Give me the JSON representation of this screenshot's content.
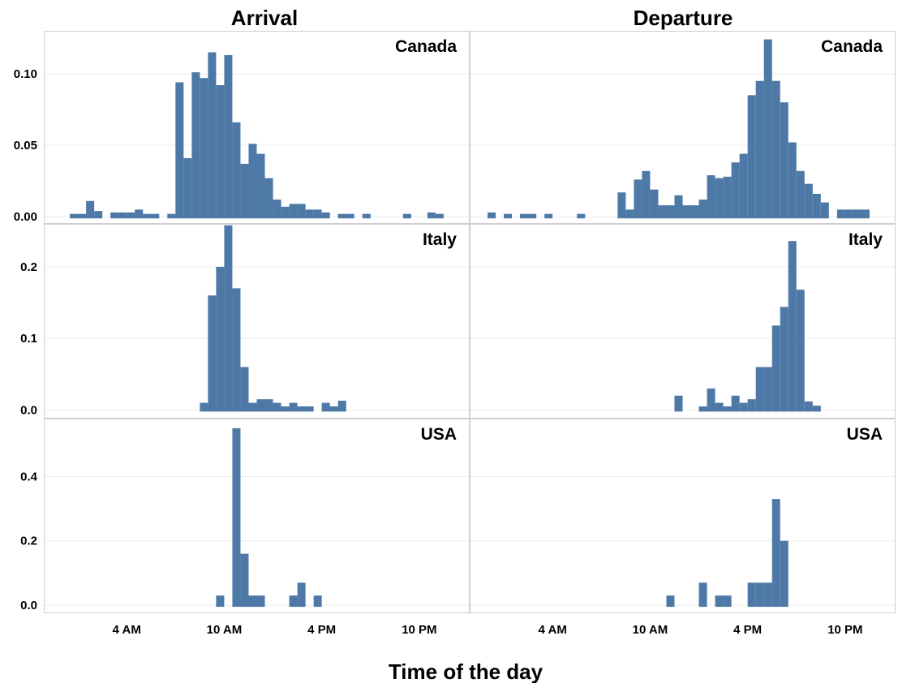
{
  "chart_data": {
    "type": "bar",
    "xlabel": "Time of the day",
    "column_titles": [
      "Arrival",
      "Departure"
    ],
    "row_labels": [
      "Canada",
      "Italy",
      "USA"
    ],
    "x_tick_labels": [
      "4 AM",
      "10 AM",
      "4 PM",
      "10 PM"
    ],
    "x_ticks_hours": [
      4,
      10,
      16,
      22
    ],
    "bin_width_hours": 0.5,
    "bar_color": "#4e79a7",
    "grid": true,
    "rows": [
      {
        "label": "Canada",
        "ylim": [
          -0.005,
          0.13
        ],
        "yticks": [
          0.0,
          0.05,
          0.1
        ],
        "ytick_labels": [
          "0.00",
          "0.05",
          "0.10"
        ]
      },
      {
        "label": "Italy",
        "ylim": [
          -0.012,
          0.26
        ],
        "yticks": [
          0.0,
          0.1,
          0.2
        ],
        "ytick_labels": [
          "0.0",
          "0.1",
          "0.2"
        ]
      },
      {
        "label": "USA",
        "ylim": [
          -0.025,
          0.58
        ],
        "yticks": [
          0.0,
          0.2,
          0.4
        ],
        "ytick_labels": [
          "0.0",
          "0.2",
          "0.4"
        ]
      }
    ],
    "panels": [
      {
        "column": "Arrival",
        "row": "Canada",
        "bars": [
          [
            0.5,
            0.002
          ],
          [
            1.0,
            0.002
          ],
          [
            1.5,
            0.011
          ],
          [
            2.0,
            0.004
          ],
          [
            3.0,
            0.003
          ],
          [
            3.5,
            0.003
          ],
          [
            4.0,
            0.003
          ],
          [
            4.5,
            0.005
          ],
          [
            5.0,
            0.002
          ],
          [
            5.5,
            0.002
          ],
          [
            6.5,
            0.002
          ],
          [
            7.0,
            0.094
          ],
          [
            7.5,
            0.041
          ],
          [
            8.0,
            0.101
          ],
          [
            8.5,
            0.097
          ],
          [
            9.0,
            0.115
          ],
          [
            9.5,
            0.092
          ],
          [
            10.0,
            0.113
          ],
          [
            10.5,
            0.066
          ],
          [
            11.0,
            0.037
          ],
          [
            11.5,
            0.051
          ],
          [
            12.0,
            0.044
          ],
          [
            12.5,
            0.027
          ],
          [
            13.0,
            0.012
          ],
          [
            13.5,
            0.007
          ],
          [
            14.0,
            0.009
          ],
          [
            14.5,
            0.009
          ],
          [
            15.0,
            0.005
          ],
          [
            15.5,
            0.005
          ],
          [
            16.0,
            0.003
          ],
          [
            17.0,
            0.002
          ],
          [
            17.5,
            0.002
          ],
          [
            18.5,
            0.002
          ],
          [
            21.0,
            0.002
          ],
          [
            22.5,
            0.003
          ],
          [
            23.0,
            0.002
          ]
        ]
      },
      {
        "column": "Departure",
        "row": "Canada",
        "bars": [
          [
            0.0,
            0.003
          ],
          [
            1.0,
            0.002
          ],
          [
            2.0,
            0.002
          ],
          [
            2.5,
            0.002
          ],
          [
            3.5,
            0.002
          ],
          [
            5.5,
            0.002
          ],
          [
            8.0,
            0.017
          ],
          [
            8.5,
            0.005
          ],
          [
            9.0,
            0.026
          ],
          [
            9.5,
            0.032
          ],
          [
            10.0,
            0.019
          ],
          [
            10.5,
            0.008
          ],
          [
            11.0,
            0.008
          ],
          [
            11.5,
            0.015
          ],
          [
            12.0,
            0.008
          ],
          [
            12.5,
            0.008
          ],
          [
            13.0,
            0.012
          ],
          [
            13.5,
            0.029
          ],
          [
            14.0,
            0.027
          ],
          [
            14.5,
            0.028
          ],
          [
            15.0,
            0.038
          ],
          [
            15.5,
            0.044
          ],
          [
            16.0,
            0.085
          ],
          [
            16.5,
            0.095
          ],
          [
            17.0,
            0.124
          ],
          [
            17.5,
            0.095
          ],
          [
            18.0,
            0.08
          ],
          [
            18.5,
            0.052
          ],
          [
            19.0,
            0.032
          ],
          [
            19.5,
            0.023
          ],
          [
            20.0,
            0.016
          ],
          [
            20.5,
            0.01
          ],
          [
            21.5,
            0.005
          ],
          [
            22.0,
            0.005
          ],
          [
            22.5,
            0.005
          ],
          [
            23.0,
            0.005
          ]
        ]
      },
      {
        "column": "Arrival",
        "row": "Italy",
        "bars": [
          [
            8.5,
            0.01
          ],
          [
            9.0,
            0.16
          ],
          [
            9.5,
            0.2
          ],
          [
            10.0,
            0.258
          ],
          [
            10.5,
            0.17
          ],
          [
            11.0,
            0.06
          ],
          [
            11.5,
            0.01
          ],
          [
            12.0,
            0.015
          ],
          [
            12.5,
            0.015
          ],
          [
            13.0,
            0.01
          ],
          [
            13.5,
            0.005
          ],
          [
            14.0,
            0.01
          ],
          [
            14.5,
            0.005
          ],
          [
            15.0,
            0.005
          ],
          [
            16.0,
            0.01
          ],
          [
            16.5,
            0.005
          ],
          [
            17.0,
            0.013
          ]
        ]
      },
      {
        "column": "Departure",
        "row": "Italy",
        "bars": [
          [
            11.5,
            0.02
          ],
          [
            13.0,
            0.005
          ],
          [
            13.5,
            0.03
          ],
          [
            14.0,
            0.01
          ],
          [
            14.5,
            0.005
          ],
          [
            15.0,
            0.02
          ],
          [
            15.5,
            0.01
          ],
          [
            16.0,
            0.015
          ],
          [
            16.5,
            0.06
          ],
          [
            17.0,
            0.06
          ],
          [
            17.5,
            0.118
          ],
          [
            18.0,
            0.144
          ],
          [
            18.5,
            0.236
          ],
          [
            19.0,
            0.168
          ],
          [
            19.5,
            0.012
          ],
          [
            20.0,
            0.006
          ]
        ]
      },
      {
        "column": "Arrival",
        "row": "USA",
        "bars": [
          [
            9.5,
            0.03
          ],
          [
            10.5,
            0.55
          ],
          [
            11.0,
            0.16
          ],
          [
            11.5,
            0.03
          ],
          [
            12.0,
            0.03
          ],
          [
            14.0,
            0.03
          ],
          [
            14.5,
            0.07
          ],
          [
            15.5,
            0.03
          ]
        ]
      },
      {
        "column": "Departure",
        "row": "USA",
        "bars": [
          [
            11.0,
            0.03
          ],
          [
            13.0,
            0.07
          ],
          [
            14.0,
            0.03
          ],
          [
            14.5,
            0.03
          ],
          [
            16.0,
            0.07
          ],
          [
            16.5,
            0.07
          ],
          [
            17.0,
            0.07
          ],
          [
            17.5,
            0.33
          ],
          [
            18.0,
            0.2
          ]
        ]
      }
    ]
  }
}
